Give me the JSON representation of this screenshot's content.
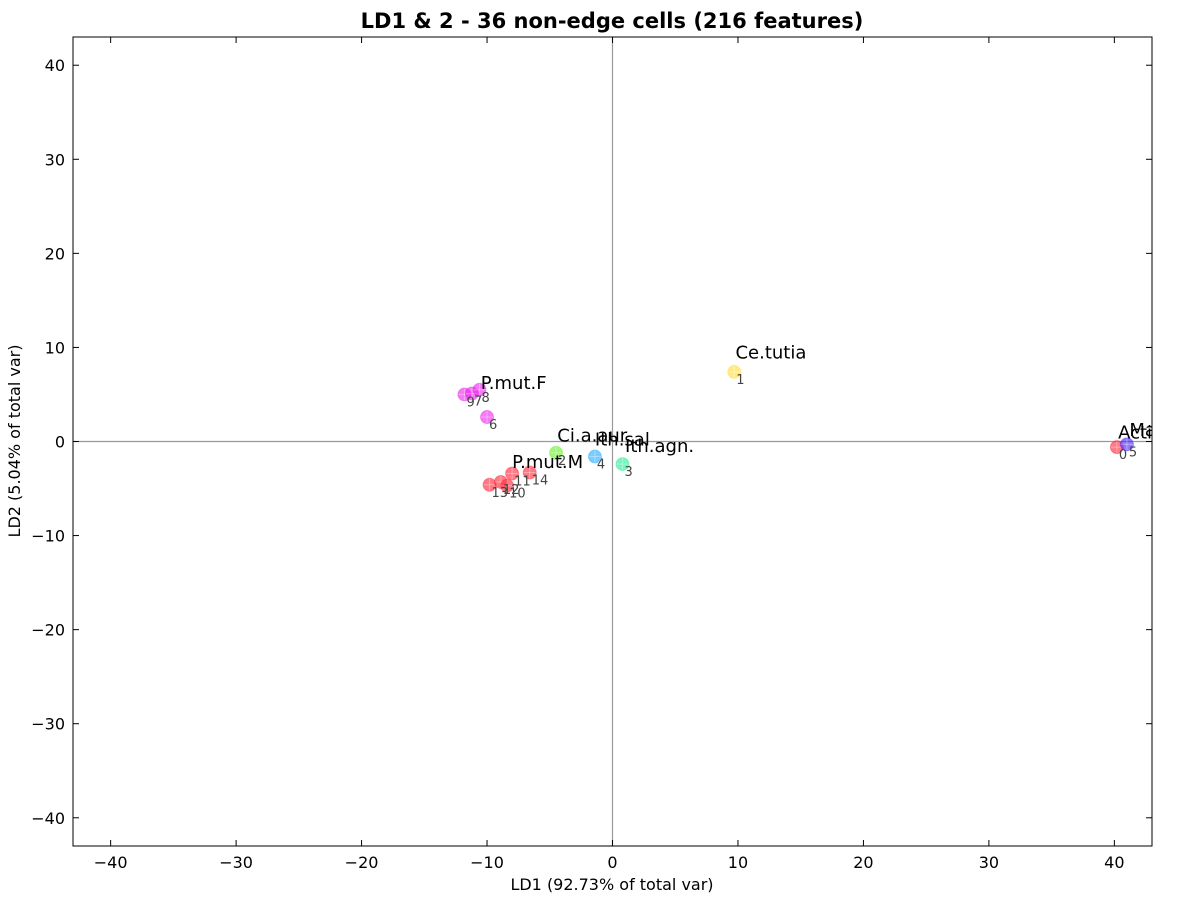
{
  "chart_data": {
    "type": "scatter",
    "title": "LD1 & 2 - 36 non-edge cells (216 features)",
    "xlabel": "LD1 (92.73% of total var)",
    "ylabel": "LD2 (5.04% of total var)",
    "xlim": [
      -43,
      43
    ],
    "ylim": [
      -43,
      43
    ],
    "xticks": [
      -40,
      -30,
      -20,
      -10,
      0,
      10,
      20,
      30,
      40
    ],
    "yticks": [
      -40,
      -30,
      -20,
      -10,
      0,
      10,
      20,
      30,
      40
    ],
    "tick_labels_x": [
      "−40",
      "−30",
      "−20",
      "−10",
      "0",
      "10",
      "20",
      "30",
      "40"
    ],
    "tick_labels_y": [
      "−40",
      "−30",
      "−20",
      "−10",
      "0",
      "10",
      "20",
      "30",
      "40"
    ],
    "grid": false,
    "zero_lines": true,
    "groups": [
      {
        "label": "P.mut.F",
        "color": "#ee22ee",
        "label_at": [
          -10.5,
          5.6
        ],
        "points": [
          {
            "i": "9",
            "x": -11.8,
            "y": 5.0
          },
          {
            "i": "7",
            "x": -11.2,
            "y": 5.1
          },
          {
            "i": "8",
            "x": -10.6,
            "y": 5.5
          },
          {
            "i": "6",
            "x": -10.0,
            "y": 2.6
          }
        ]
      },
      {
        "label": "P.mut.M",
        "color": "#ff2233",
        "label_at": [
          -8.0,
          -2.8
        ],
        "points": [
          {
            "i": "13",
            "x": -9.8,
            "y": -4.6
          },
          {
            "i": "12",
            "x": -8.9,
            "y": -4.3
          },
          {
            "i": "10",
            "x": -8.4,
            "y": -4.7
          },
          {
            "i": "11",
            "x": -8.0,
            "y": -3.4
          },
          {
            "i": "14",
            "x": -6.6,
            "y": -3.3
          }
        ]
      },
      {
        "label": "Ci.a.aur.",
        "color": "#66ee22",
        "label_at": [
          -4.4,
          0.0
        ],
        "points": [
          {
            "i": "2",
            "x": -4.5,
            "y": -1.2
          }
        ]
      },
      {
        "label": "Ith.sal",
        "color": "#22aaff",
        "label_at": [
          -1.4,
          -0.4
        ],
        "points": [
          {
            "i": "4",
            "x": -1.4,
            "y": -1.6
          }
        ]
      },
      {
        "label": "Ith.agn.",
        "color": "#22ee99",
        "label_at": [
          1.0,
          -1.1
        ],
        "points": [
          {
            "i": "3",
            "x": 0.8,
            "y": -2.4
          }
        ]
      },
      {
        "label": "Ce.tutia",
        "color": "#ffdd33",
        "label_at": [
          9.8,
          8.8
        ],
        "points": [
          {
            "i": "1",
            "x": 9.7,
            "y": 7.4
          }
        ]
      },
      {
        "label": "Actinote",
        "color": "#ff2233",
        "label_at": [
          40.3,
          0.3
        ],
        "points": [
          {
            "i": "0",
            "x": 40.2,
            "y": -0.6
          }
        ]
      },
      {
        "label": "Marpesia",
        "color": "#4422ff",
        "label_at": [
          41.2,
          0.6
        ],
        "points": [
          {
            "i": "5",
            "x": 41.0,
            "y": -0.3
          }
        ]
      }
    ]
  }
}
